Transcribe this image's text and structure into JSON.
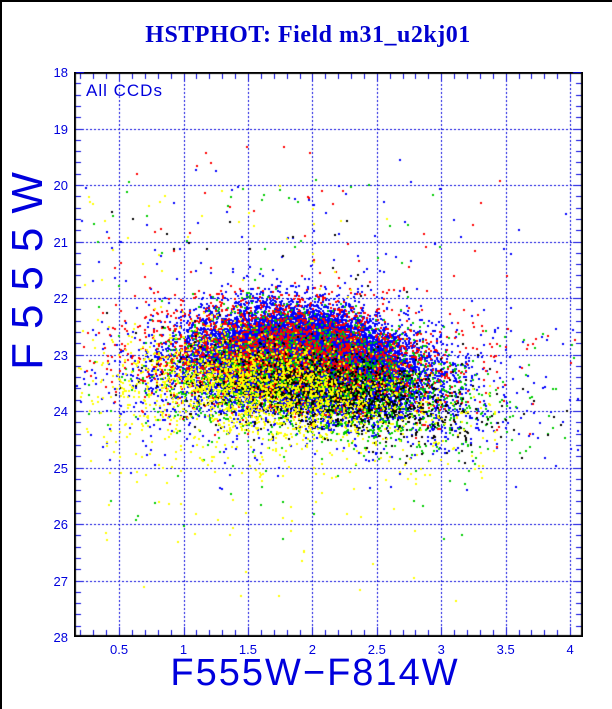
{
  "window": {
    "background": "#ffffff",
    "border_color": "#000000"
  },
  "chart_data": {
    "type": "scatter",
    "title": "HSTPHOT: Field m31_u2kj01",
    "annotation": "All CCDs",
    "xlabel": "F555W−F814W",
    "ylabel": "F555W",
    "xlim": [
      0.15,
      4.1
    ],
    "ylim": [
      18,
      28
    ],
    "y_axis_inverted_magnitudes": true,
    "grid": "dashed blue lines at every major tick",
    "legend_position": "none",
    "axis_color": "#000000",
    "grid_color": "#0000dd",
    "text_color": "#0000dd",
    "title_color": "#0000d0",
    "point_size": 2,
    "seed": 20021,
    "x_major_ticks": [
      {
        "v": 0.5,
        "label": "0.5"
      },
      {
        "v": 1.0,
        "label": "1"
      },
      {
        "v": 1.5,
        "label": "1.5"
      },
      {
        "v": 2.0,
        "label": "2"
      },
      {
        "v": 2.5,
        "label": "2.5"
      },
      {
        "v": 3.0,
        "label": "3"
      },
      {
        "v": 3.5,
        "label": "3.5"
      },
      {
        "v": 4.0,
        "label": "4"
      }
    ],
    "y_major_ticks": [
      {
        "v": 18,
        "label": "18"
      },
      {
        "v": 19,
        "label": "19"
      },
      {
        "v": 20,
        "label": "20"
      },
      {
        "v": 21,
        "label": "21"
      },
      {
        "v": 22,
        "label": "22"
      },
      {
        "v": 23,
        "label": "23"
      },
      {
        "v": 24,
        "label": "24"
      },
      {
        "v": 25,
        "label": "25"
      },
      {
        "v": 26,
        "label": "26"
      },
      {
        "v": 27,
        "label": "27"
      },
      {
        "v": 28,
        "label": "28"
      }
    ],
    "x_minor_step": 0.1,
    "y_minor_step": 0.2,
    "series": [
      {
        "name": "ccd-blue",
        "color": "#0000ff",
        "clusters": [
          {
            "count": 14000,
            "cx": 1.95,
            "cy": 23.05,
            "sx": 0.4,
            "sy": 0.4,
            "slope": 0.18,
            "quad": 0.22
          },
          {
            "count": 2600,
            "cx": 1.95,
            "cy": 23.15,
            "sx": 0.68,
            "sy": 0.58,
            "slope": 0.18,
            "quad": 0.2
          }
        ],
        "field": [
          {
            "count": 60,
            "x": [
              0.2,
              3.0
            ],
            "y": [
              19.5,
              22.0
            ]
          },
          {
            "count": 8,
            "x": [
              3.0,
              4.05
            ],
            "y": [
              20.0,
              22.3
            ]
          },
          {
            "count": 45,
            "x": [
              0.3,
              3.9
            ],
            "y": [
              24.2,
              25.4
            ]
          },
          {
            "count": 25,
            "x": [
              3.0,
              4.05
            ],
            "y": [
              22.5,
              24.3
            ]
          }
        ]
      },
      {
        "name": "ccd-green",
        "color": "#00cc00",
        "clusters": [
          {
            "count": 2700,
            "cx": 2.0,
            "cy": 23.3,
            "sx": 0.56,
            "sy": 0.5,
            "slope": 0.25,
            "quad": 0.2
          }
        ],
        "field": [
          {
            "count": 35,
            "x": [
              0.2,
              3.0
            ],
            "y": [
              19.8,
              22.2
            ]
          },
          {
            "count": 45,
            "x": [
              2.6,
              4.05
            ],
            "y": [
              22.5,
              24.8
            ]
          },
          {
            "count": 28,
            "x": [
              0.3,
              3.4
            ],
            "y": [
              24.6,
              26.4
            ]
          }
        ]
      },
      {
        "name": "ccd-red",
        "color": "#ff0000",
        "clusters": [
          {
            "count": 2300,
            "cx": 1.85,
            "cy": 22.95,
            "sx": 0.6,
            "sy": 0.48,
            "slope": 0.12,
            "quad": 0.15
          }
        ],
        "field": [
          {
            "count": 40,
            "x": [
              0.2,
              2.9
            ],
            "y": [
              19.3,
              22.0
            ]
          },
          {
            "count": 6,
            "x": [
              2.9,
              4.05
            ],
            "y": [
              19.5,
              22.2
            ]
          },
          {
            "count": 22,
            "x": [
              2.8,
              4.05
            ],
            "y": [
              22.3,
              24.3
            ]
          }
        ]
      },
      {
        "name": "ccd-black",
        "color": "#000000",
        "clusters": [
          {
            "count": 1300,
            "cx": 2.05,
            "cy": 23.6,
            "sx": 0.52,
            "sy": 0.34,
            "slope": 0.28,
            "quad": 0.15
          }
        ],
        "field": [
          {
            "count": 22,
            "x": [
              0.3,
              2.8
            ],
            "y": [
              20.3,
              22.5
            ]
          },
          {
            "count": 35,
            "x": [
              2.6,
              4.05
            ],
            "y": [
              22.8,
              24.6
            ]
          }
        ]
      },
      {
        "name": "ccd-yellow",
        "color": "#ffff00",
        "clusters": [
          {
            "count": 1900,
            "cx": 1.62,
            "cy": 23.55,
            "sx": 0.58,
            "sy": 0.45,
            "slope": 0.2,
            "quad": 0.1
          }
        ],
        "field": [
          {
            "count": 45,
            "x": [
              0.2,
              2.6
            ],
            "y": [
              20.0,
              23.0
            ]
          },
          {
            "count": 170,
            "x": [
              0.25,
              3.45
            ],
            "y": [
              23.6,
              25.2
            ]
          },
          {
            "count": 30,
            "x": [
              0.3,
              3.3
            ],
            "y": [
              25.2,
              26.3
            ]
          },
          {
            "count": 12,
            "x": [
              0.3,
              3.3
            ],
            "y": [
              26.3,
              27.4
            ]
          }
        ]
      }
    ]
  }
}
